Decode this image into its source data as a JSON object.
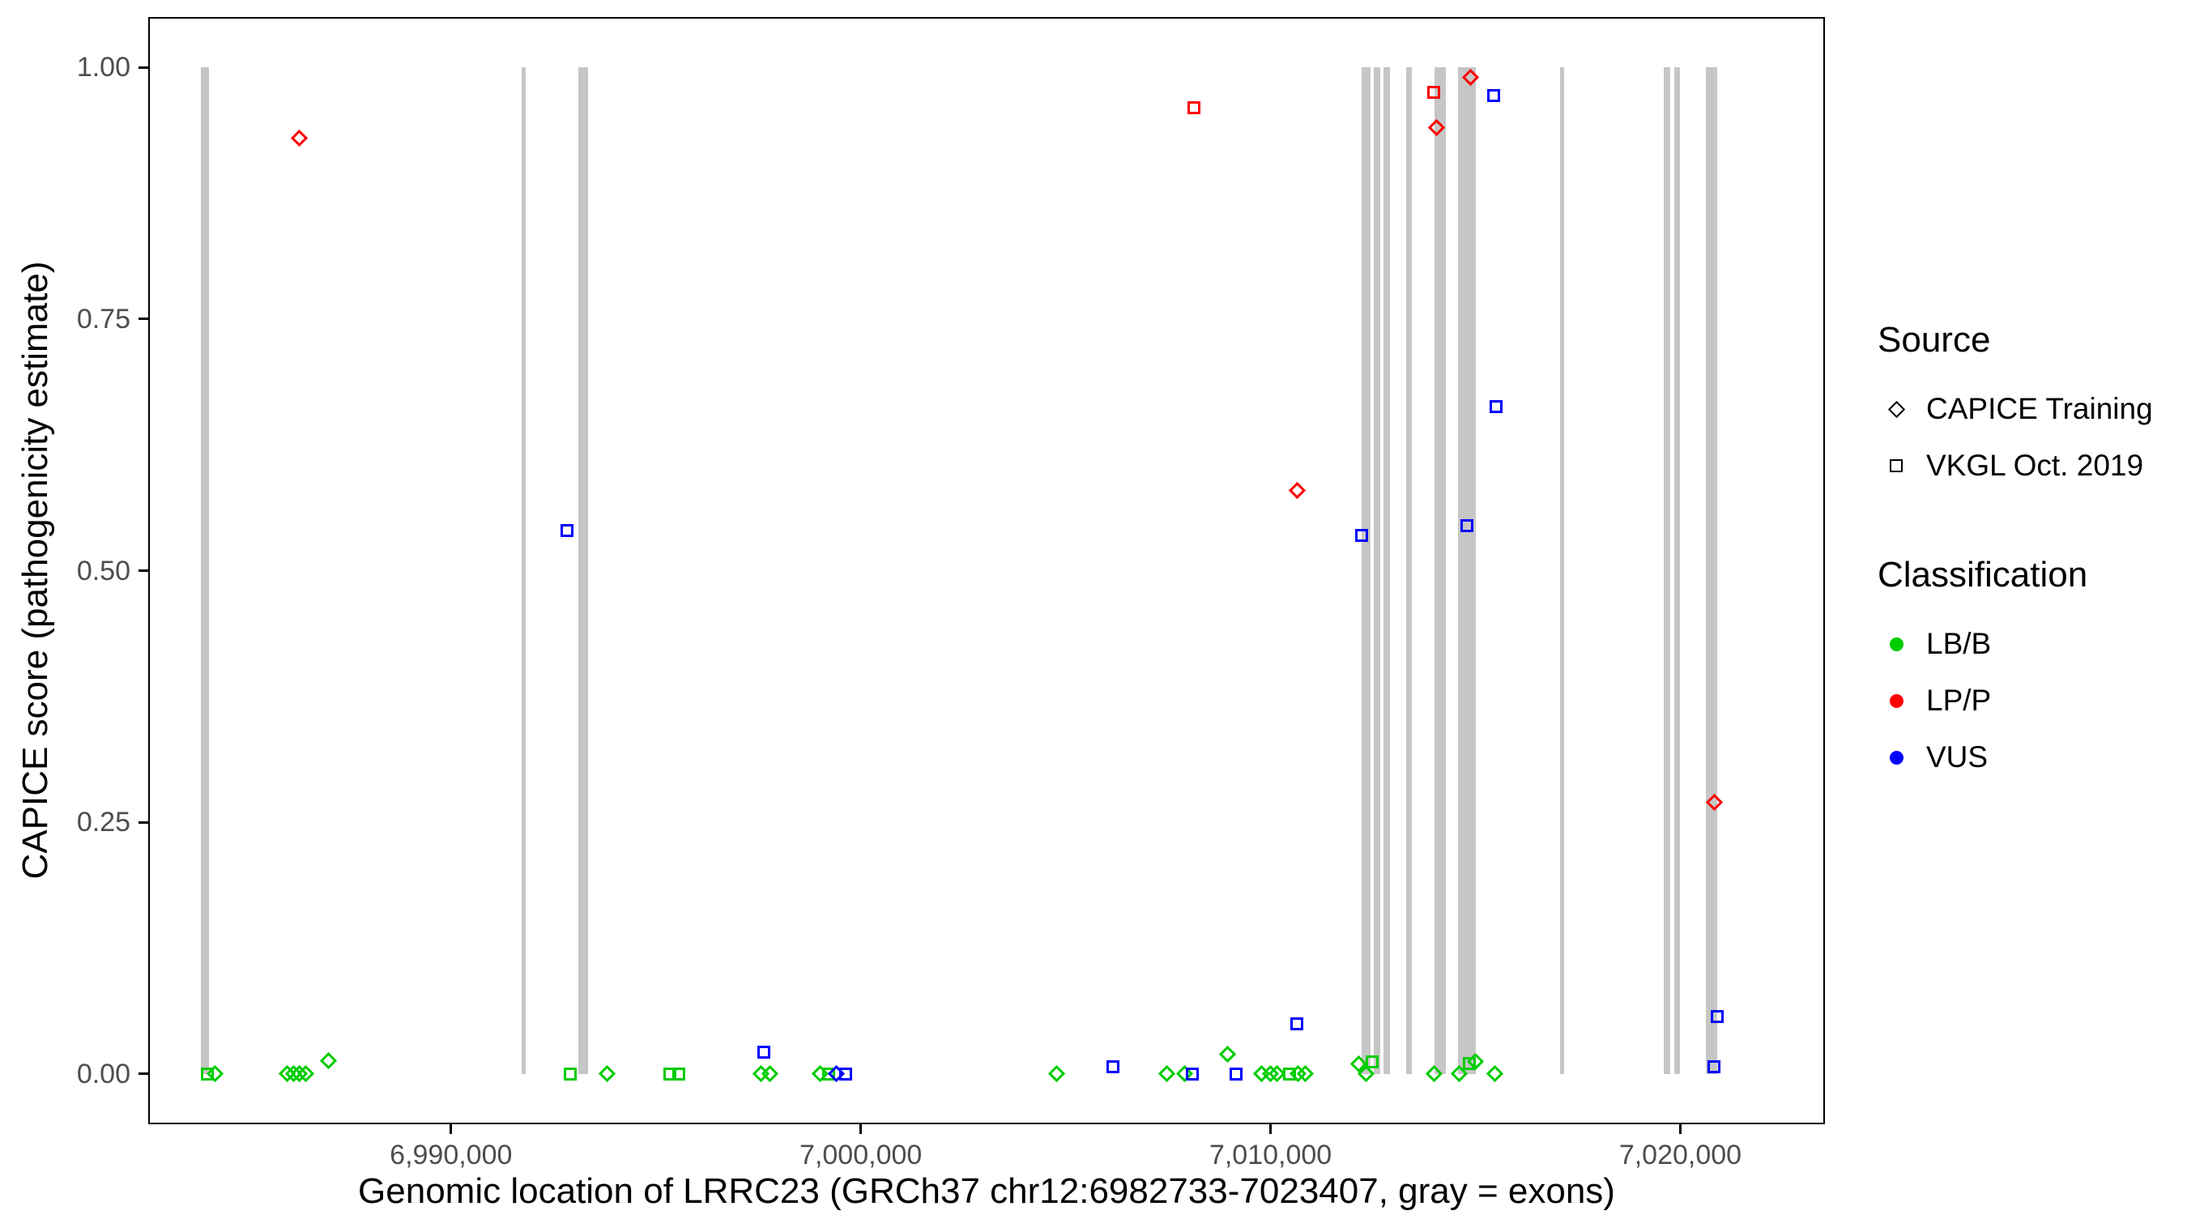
{
  "colors": {
    "LB/B": "#00CC00",
    "LP/P": "#FF0000",
    "VUS": "#0000FF",
    "exon": "#C6C6C6"
  },
  "legend": {
    "source": {
      "title": "Source",
      "items": [
        {
          "label": "CAPICE Training",
          "shape": "diamond"
        },
        {
          "label": "VKGL Oct. 2019",
          "shape": "square"
        }
      ]
    },
    "classification": {
      "title": "Classification",
      "items": [
        {
          "label": "LB/B",
          "color": "#00CC00"
        },
        {
          "label": "LP/P",
          "color": "#FF0000"
        },
        {
          "label": "VUS",
          "color": "#0000FF"
        }
      ]
    }
  },
  "chart_data": {
    "type": "scatter",
    "title": "",
    "xlabel": "Genomic location of LRRC23 (GRCh37 chr12:6982733-7023407, gray = exons)",
    "ylabel": "CAPICE score (pathogenicity estimate)",
    "xlim": [
      6982733,
      7023407
    ],
    "ylim": [
      0,
      1
    ],
    "grid": "off",
    "legend_position": "right",
    "x_ticks": [
      {
        "value": 6990000,
        "label": "6,990,000"
      },
      {
        "value": 7000000,
        "label": "7,000,000"
      },
      {
        "value": 7010000,
        "label": "7,010,000"
      },
      {
        "value": 7020000,
        "label": "7,020,000"
      }
    ],
    "y_ticks": [
      {
        "value": 0.0,
        "label": "0.00"
      },
      {
        "value": 0.25,
        "label": "0.25"
      },
      {
        "value": 0.5,
        "label": "0.50"
      },
      {
        "value": 0.75,
        "label": "0.75"
      },
      {
        "value": 1.0,
        "label": "1.00"
      }
    ],
    "exons": [
      [
        6983890,
        6984100
      ],
      [
        6991725,
        6991830
      ],
      [
        6993110,
        6993350
      ],
      [
        7012230,
        7012440
      ],
      [
        7012510,
        7012680
      ],
      [
        7012750,
        7012920
      ],
      [
        7013300,
        7013440
      ],
      [
        7014000,
        7014280
      ],
      [
        7014580,
        7015000
      ],
      [
        7017070,
        7017170
      ],
      [
        7019590,
        7019760
      ],
      [
        7019860,
        7020000
      ],
      [
        7020620,
        7020900
      ]
    ],
    "points": [
      {
        "x": 6984050,
        "y": 0.0,
        "src": "VKGL Oct. 2019",
        "cls": "LB/B"
      },
      {
        "x": 6984250,
        "y": 0.0,
        "src": "CAPICE Training",
        "cls": "LB/B"
      },
      {
        "x": 6986000,
        "y": 0.0,
        "src": "CAPICE Training",
        "cls": "LB/B"
      },
      {
        "x": 6986150,
        "y": 0.0,
        "src": "CAPICE Training",
        "cls": "LB/B"
      },
      {
        "x": 6986300,
        "y": 0.0,
        "src": "CAPICE Training",
        "cls": "LB/B"
      },
      {
        "x": 6986450,
        "y": 0.0,
        "src": "CAPICE Training",
        "cls": "LB/B"
      },
      {
        "x": 6986300,
        "y": 0.93,
        "src": "CAPICE Training",
        "cls": "LP/P"
      },
      {
        "x": 6987000,
        "y": 0.013,
        "src": "CAPICE Training",
        "cls": "LB/B"
      },
      {
        "x": 6992830,
        "y": 0.54,
        "src": "VKGL Oct. 2019",
        "cls": "VUS"
      },
      {
        "x": 6992900,
        "y": 0.0,
        "src": "VKGL Oct. 2019",
        "cls": "LB/B"
      },
      {
        "x": 6993800,
        "y": 0.0,
        "src": "CAPICE Training",
        "cls": "LB/B"
      },
      {
        "x": 6995350,
        "y": 0.0,
        "src": "VKGL Oct. 2019",
        "cls": "LB/B"
      },
      {
        "x": 6995560,
        "y": 0.0,
        "src": "VKGL Oct. 2019",
        "cls": "LB/B"
      },
      {
        "x": 6997560,
        "y": 0.0,
        "src": "CAPICE Training",
        "cls": "LB/B"
      },
      {
        "x": 6997780,
        "y": 0.0,
        "src": "CAPICE Training",
        "cls": "LB/B"
      },
      {
        "x": 6997630,
        "y": 0.022,
        "src": "VKGL Oct. 2019",
        "cls": "VUS"
      },
      {
        "x": 6999010,
        "y": 0.0,
        "src": "CAPICE Training",
        "cls": "LB/B"
      },
      {
        "x": 6999220,
        "y": 0.0,
        "src": "VKGL Oct. 2019",
        "cls": "LB/B"
      },
      {
        "x": 6999400,
        "y": 0.0,
        "src": "CAPICE Training",
        "cls": "VUS"
      },
      {
        "x": 6999640,
        "y": 0.0,
        "src": "VKGL Oct. 2019",
        "cls": "VUS"
      },
      {
        "x": 7004780,
        "y": 0.0,
        "src": "CAPICE Training",
        "cls": "LB/B"
      },
      {
        "x": 7006160,
        "y": 0.007,
        "src": "VKGL Oct. 2019",
        "cls": "VUS"
      },
      {
        "x": 7007470,
        "y": 0.0,
        "src": "CAPICE Training",
        "cls": "LB/B"
      },
      {
        "x": 7007900,
        "y": 0.0,
        "src": "CAPICE Training",
        "cls": "LB/B"
      },
      {
        "x": 7008100,
        "y": 0.0,
        "src": "VKGL Oct. 2019",
        "cls": "VUS"
      },
      {
        "x": 7008130,
        "y": 0.96,
        "src": "VKGL Oct. 2019",
        "cls": "LP/P"
      },
      {
        "x": 7008950,
        "y": 0.02,
        "src": "CAPICE Training",
        "cls": "LB/B"
      },
      {
        "x": 7009150,
        "y": 0.0,
        "src": "VKGL Oct. 2019",
        "cls": "VUS"
      },
      {
        "x": 7009780,
        "y": 0.0,
        "src": "CAPICE Training",
        "cls": "LB/B"
      },
      {
        "x": 7009990,
        "y": 0.0,
        "src": "CAPICE Training",
        "cls": "LB/B"
      },
      {
        "x": 7010160,
        "y": 0.0,
        "src": "CAPICE Training",
        "cls": "LB/B"
      },
      {
        "x": 7010470,
        "y": 0.0,
        "src": "VKGL Oct. 2019",
        "cls": "LB/B"
      },
      {
        "x": 7010650,
        "y": 0.58,
        "src": "CAPICE Training",
        "cls": "LP/P"
      },
      {
        "x": 7010650,
        "y": 0.05,
        "src": "VKGL Oct. 2019",
        "cls": "VUS"
      },
      {
        "x": 7010680,
        "y": 0.0,
        "src": "CAPICE Training",
        "cls": "LB/B"
      },
      {
        "x": 7010850,
        "y": 0.0,
        "src": "CAPICE Training",
        "cls": "LB/B"
      },
      {
        "x": 7012160,
        "y": 0.01,
        "src": "CAPICE Training",
        "cls": "LB/B"
      },
      {
        "x": 7012330,
        "y": 0.0,
        "src": "CAPICE Training",
        "cls": "LB/B"
      },
      {
        "x": 7012470,
        "y": 0.012,
        "src": "VKGL Oct. 2019",
        "cls": "LB/B"
      },
      {
        "x": 7012230,
        "y": 0.535,
        "src": "VKGL Oct. 2019",
        "cls": "VUS"
      },
      {
        "x": 7013990,
        "y": 0.975,
        "src": "VKGL Oct. 2019",
        "cls": "LP/P"
      },
      {
        "x": 7014050,
        "y": 0.94,
        "src": "CAPICE Training",
        "cls": "LP/P"
      },
      {
        "x": 7013990,
        "y": 0.0,
        "src": "CAPICE Training",
        "cls": "LB/B"
      },
      {
        "x": 7014600,
        "y": 0.0,
        "src": "CAPICE Training",
        "cls": "LB/B"
      },
      {
        "x": 7014850,
        "y": 0.01,
        "src": "VKGL Oct. 2019",
        "cls": "LB/B"
      },
      {
        "x": 7015000,
        "y": 0.012,
        "src": "CAPICE Training",
        "cls": "LB/B"
      },
      {
        "x": 7014890,
        "y": 0.99,
        "src": "CAPICE Training",
        "cls": "LP/P"
      },
      {
        "x": 7014790,
        "y": 0.545,
        "src": "VKGL Oct. 2019",
        "cls": "VUS"
      },
      {
        "x": 7015440,
        "y": 0.972,
        "src": "VKGL Oct. 2019",
        "cls": "VUS"
      },
      {
        "x": 7015510,
        "y": 0.663,
        "src": "VKGL Oct. 2019",
        "cls": "VUS"
      },
      {
        "x": 7015470,
        "y": 0.0,
        "src": "CAPICE Training",
        "cls": "LB/B"
      },
      {
        "x": 7020830,
        "y": 0.27,
        "src": "CAPICE Training",
        "cls": "LP/P"
      },
      {
        "x": 7020900,
        "y": 0.057,
        "src": "VKGL Oct. 2019",
        "cls": "VUS"
      },
      {
        "x": 7020830,
        "y": 0.007,
        "src": "VKGL Oct. 2019",
        "cls": "VUS"
      }
    ]
  }
}
